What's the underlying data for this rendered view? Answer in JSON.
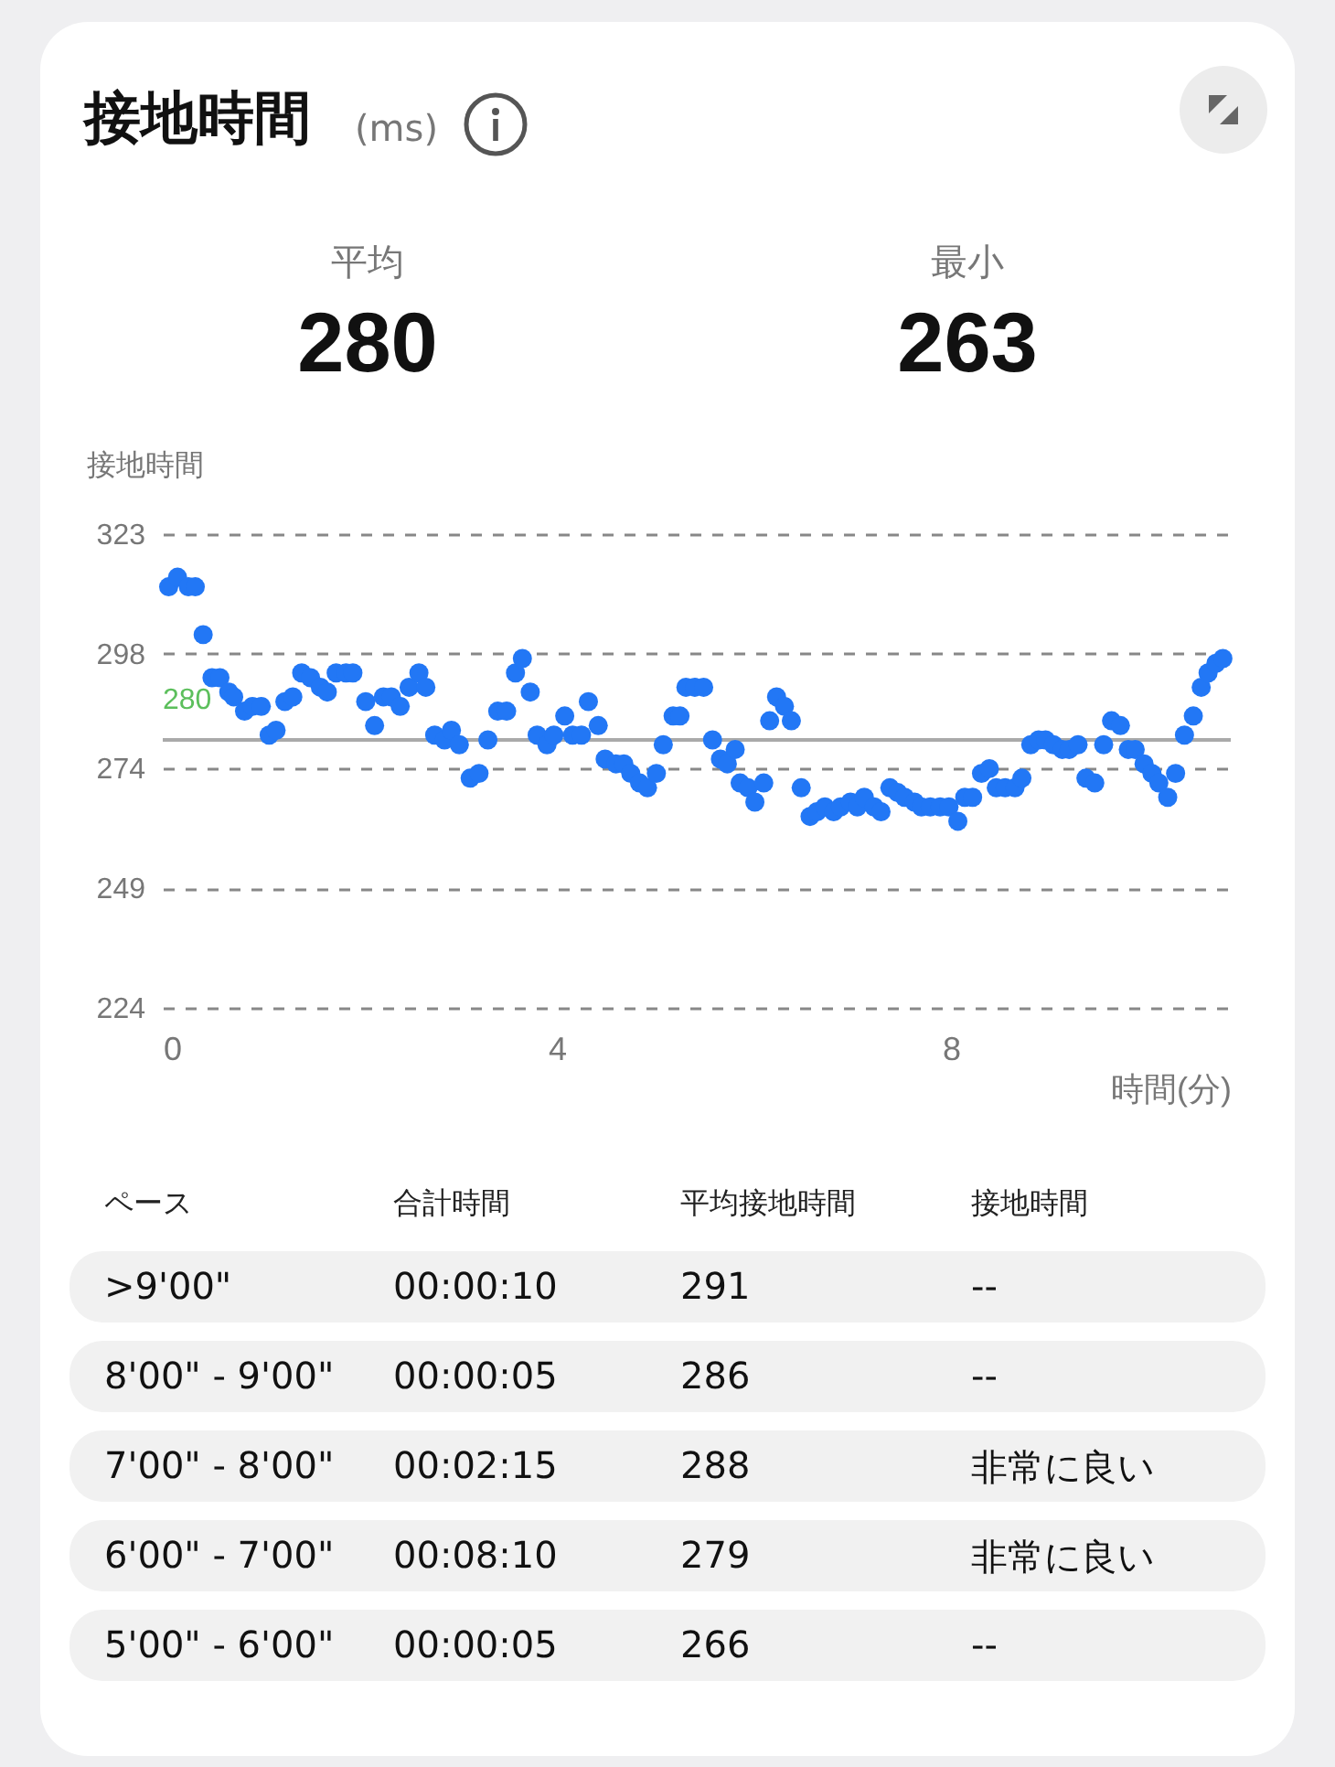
{
  "chart_data": {
    "type": "scatter",
    "title": "接地時間",
    "subtitle": "(ms)",
    "ylabel": "接地時間",
    "xlabel": "時間(分)",
    "x": [
      0.06,
      0.15,
      0.26,
      0.33,
      0.41,
      0.5,
      0.58,
      0.67,
      0.72,
      0.83,
      0.91,
      1.0,
      1.08,
      1.15,
      1.24,
      1.32,
      1.41,
      1.5,
      1.6,
      1.67,
      1.76,
      1.86,
      1.93,
      2.06,
      2.15,
      2.24,
      2.32,
      2.41,
      2.5,
      2.6,
      2.67,
      2.76,
      2.86,
      2.93,
      3.01,
      3.12,
      3.21,
      3.3,
      3.4,
      3.49,
      3.58,
      3.65,
      3.73,
      3.8,
      3.9,
      3.97,
      4.08,
      4.16,
      4.25,
      4.32,
      4.42,
      4.49,
      4.6,
      4.68,
      4.75,
      4.84,
      4.92,
      5.01,
      5.08,
      5.18,
      5.25,
      5.31,
      5.4,
      5.49,
      5.58,
      5.66,
      5.73,
      5.81,
      5.86,
      5.94,
      6.01,
      6.1,
      6.16,
      6.23,
      6.31,
      6.38,
      6.48,
      6.57,
      6.64,
      6.72,
      6.81,
      6.88,
      6.98,
      7.05,
      7.12,
      7.22,
      7.29,
      7.38,
      7.46,
      7.53,
      7.63,
      7.7,
      7.79,
      7.89,
      7.98,
      8.07,
      8.14,
      8.22,
      8.31,
      8.39,
      8.46,
      8.55,
      8.65,
      8.72,
      8.81,
      8.89,
      8.96,
      9.04,
      9.13,
      9.2,
      9.29,
      9.37,
      9.46,
      9.55,
      9.63,
      9.72,
      9.8,
      9.87,
      9.96,
      10.04,
      10.11,
      10.2,
      10.28,
      10.37,
      10.46,
      10.54,
      10.61,
      10.69,
      10.76
    ],
    "series": [
      {
        "color": "#2277f5",
        "values": [
          312,
          314,
          312,
          312,
          302,
          293,
          293,
          290,
          289,
          286,
          287,
          287,
          281,
          282,
          288,
          289,
          294,
          293,
          291,
          290,
          294,
          294,
          294,
          288,
          283,
          289,
          289,
          287,
          291,
          294,
          291,
          281,
          280,
          282,
          279,
          272,
          273,
          280,
          286,
          286,
          294,
          297,
          290,
          281,
          279,
          281,
          285,
          281,
          281,
          288,
          283,
          276,
          275,
          275,
          273,
          271,
          270,
          273,
          279,
          285,
          285,
          291,
          291,
          291,
          280,
          276,
          275,
          278,
          271,
          270,
          267,
          271,
          284,
          289,
          287,
          284,
          270,
          264,
          265,
          266,
          265,
          266,
          267,
          266,
          268,
          266,
          265,
          270,
          269,
          268,
          267,
          266,
          266,
          266,
          266,
          263,
          268,
          268,
          273,
          274,
          270,
          270,
          270,
          272,
          279,
          280,
          280,
          279,
          278,
          278,
          279,
          272,
          271,
          279,
          284,
          283,
          278,
          278,
          275,
          273,
          271,
          268,
          273,
          281,
          285,
          291,
          294,
          296,
          297
        ]
      }
    ],
    "xlim": [
      0,
      10.84
    ],
    "xticks": [
      0,
      4,
      8
    ],
    "ylim": [
      224,
      323
    ],
    "yticks": [
      224,
      249,
      274,
      298,
      323
    ],
    "grid": "y",
    "marker": "circle",
    "ref_lines": [
      {
        "axis": "y",
        "value": 280,
        "label": "280",
        "color": "#aaaaaa"
      }
    ],
    "annotations": [
      "平均",
      "280",
      "最小",
      "263",
      "ペース",
      "合計時間",
      "平均接地時間",
      "接地時間",
      ">9'00\"",
      "00:00:10",
      "291",
      "--",
      "8'00\" - 9'00\"",
      "00:00:05",
      "286",
      "--",
      "7'00\" - 8'00\"",
      "00:02:15",
      "288",
      "非常に良い",
      "6'00\" - 7'00\"",
      "00:08:10",
      "279",
      "非常に良い",
      "5'00\" - 6'00\"",
      "00:00:05",
      "266",
      "--"
    ]
  }
}
